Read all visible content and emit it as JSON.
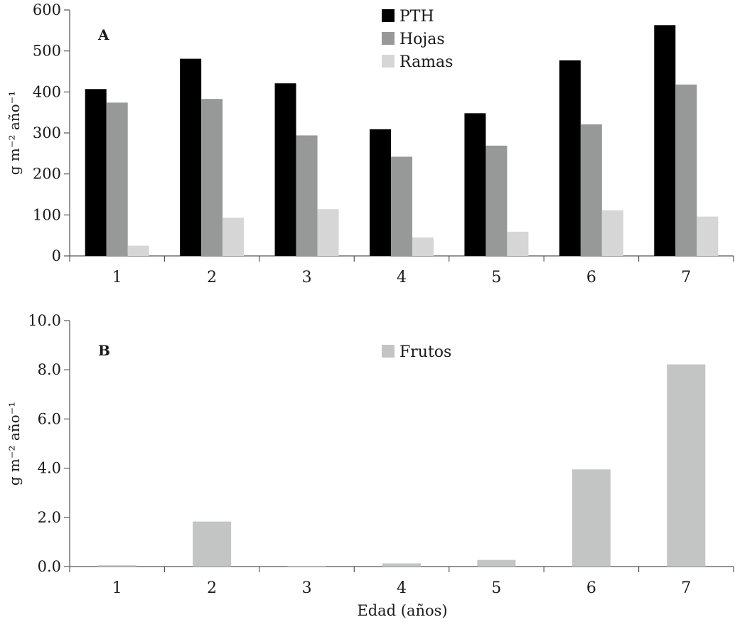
{
  "chart_data": [
    {
      "type": "bar",
      "panel_label": "A",
      "categories": [
        "1",
        "2",
        "3",
        "4",
        "5",
        "6",
        "7"
      ],
      "series": [
        {
          "name": "PTH",
          "color": "#000000",
          "values": [
            407,
            481,
            421,
            309,
            348,
            477,
            563
          ]
        },
        {
          "name": "Hojas",
          "color": "#979898",
          "values": [
            374,
            383,
            294,
            242,
            269,
            321,
            418
          ]
        },
        {
          "name": "Ramas",
          "color": "#d6d6d6",
          "values": [
            25,
            93,
            114,
            45,
            59,
            111,
            96
          ]
        }
      ],
      "ylabel": "g m⁻² año⁻¹",
      "xlabel": "",
      "ylim": [
        0,
        600
      ],
      "yticks": [
        "0",
        "100",
        "200",
        "300",
        "400",
        "500",
        "600"
      ],
      "legend_placement": "top-center",
      "grid": false
    },
    {
      "type": "bar",
      "panel_label": "B",
      "categories": [
        "1",
        "2",
        "3",
        "4",
        "5",
        "6",
        "7"
      ],
      "series": [
        {
          "name": "Frutos",
          "color": "#c3c4c4",
          "values": [
            0.05,
            1.83,
            0.02,
            0.13,
            0.27,
            3.95,
            8.22
          ]
        }
      ],
      "ylabel": "g m⁻² año⁻¹",
      "xlabel": "Edad (años)",
      "ylim": [
        0,
        10
      ],
      "yticks": [
        "0.0",
        "2.0",
        "4.0",
        "6.0",
        "8.0",
        "10.0"
      ],
      "legend_placement": "top-center",
      "grid": false
    }
  ]
}
